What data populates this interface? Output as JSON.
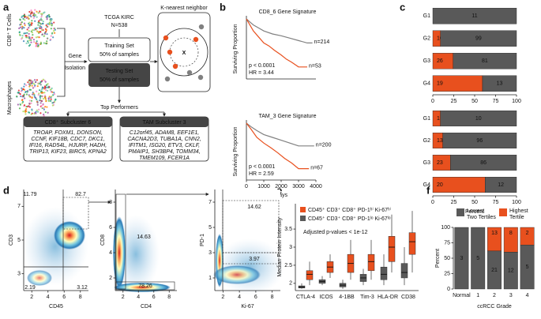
{
  "panel_labels": [
    "a",
    "b",
    "c",
    "d",
    "e",
    "f"
  ],
  "diagram": {
    "cd8_cells": "CD8⁺ T Cells",
    "macrophages": "Macrophages",
    "gene_isolation": [
      "Gene",
      "Isolation"
    ],
    "dataset": "TCGA KIRC",
    "n": "N=538",
    "training": [
      "Training Set",
      "50% of samples"
    ],
    "testing": [
      "Testing Set",
      "50% of samples"
    ],
    "knn": "K-nearest neighbor",
    "knn_x": "X",
    "top": "Top Performers",
    "boxes": [
      {
        "title": "CD8⁺ Subcluster 6",
        "genes": [
          "TROAP, FOXM1, DONSON,",
          "CCNF, KIF18B, CDC7, DKC1,",
          "IFI16, RAD54L, HJURP, HADH,",
          "TRIP13, KIF23, BIRC5, KPNA2"
        ]
      },
      {
        "title": "TAM Subcluster 3",
        "genes": [
          "C12orf45, ADAM8, EEF1E1,",
          "CACNA2D3, TUBA1A, CNN2,",
          "IFITM1, ISG20, ETV3, CKLF,",
          "PMAIP1, SH3BP4, TOMM34,",
          "TMEM109, FCER1A"
        ]
      }
    ]
  },
  "chart_data": [
    {
      "type": "line",
      "title": "CD8_6 Gene Signature",
      "ylabel": "Surviving Proportion",
      "xlim": [
        0,
        4000
      ],
      "ylim": [
        0,
        1
      ],
      "annotations": [
        "p < 0.0001",
        "HR = 3.44"
      ],
      "series": [
        {
          "name": "n=214",
          "color": "#808080",
          "x": [
            0,
            200,
            400,
            700,
            1000,
            1500,
            2000,
            2500,
            3000,
            3500,
            3800
          ],
          "values": [
            1,
            0.95,
            0.9,
            0.85,
            0.8,
            0.75,
            0.72,
            0.68,
            0.64,
            0.6,
            0.6
          ]
        },
        {
          "name": "n=53",
          "color": "#e8501e",
          "x": [
            0,
            200,
            400,
            700,
            1000,
            1300,
            1600,
            2000,
            2300,
            2600,
            3000,
            3500
          ],
          "values": [
            1,
            0.9,
            0.8,
            0.7,
            0.6,
            0.55,
            0.48,
            0.4,
            0.33,
            0.28,
            0.2,
            0.2
          ]
        }
      ]
    },
    {
      "type": "line",
      "title": "TAM_3 Gene Signature",
      "ylabel": "Surviving Proportion",
      "xlabel": "Days",
      "xlim": [
        0,
        4000
      ],
      "xticks": [
        0,
        1000,
        2000,
        3000,
        4000
      ],
      "ylim": [
        0,
        1
      ],
      "annotations": [
        "p < 0.0001",
        "HR = 2.59"
      ],
      "series": [
        {
          "name": "n=200",
          "color": "#808080",
          "x": [
            0,
            300,
            600,
            1000,
            1500,
            2000,
            2500,
            3000,
            3500,
            3900
          ],
          "values": [
            1,
            0.93,
            0.87,
            0.8,
            0.75,
            0.7,
            0.65,
            0.6,
            0.6,
            0.6
          ]
        },
        {
          "name": "n=67",
          "color": "#e8501e",
          "x": [
            0,
            300,
            600,
            1000,
            1400,
            1800,
            2200,
            2600,
            3000,
            3600
          ],
          "values": [
            1,
            0.88,
            0.75,
            0.65,
            0.57,
            0.48,
            0.38,
            0.3,
            0.2,
            0.2
          ]
        }
      ]
    },
    {
      "type": "hbar",
      "stacked_percent": true,
      "categories": [
        "G1",
        "G2",
        "G3",
        "G4"
      ],
      "xlim": [
        0,
        100
      ],
      "xticks": [
        0,
        25,
        50,
        75,
        100
      ],
      "series": [
        {
          "color": "#e8501e",
          "values": [
            0,
            10,
            26,
            19
          ]
        },
        {
          "color": "#595959",
          "values": [
            11,
            99,
            81,
            13
          ]
        }
      ]
    },
    {
      "type": "hbar",
      "stacked_percent": true,
      "categories": [
        "G1",
        "G2",
        "G3",
        "G4"
      ],
      "xlabel": "Percent",
      "xlim": [
        0,
        100
      ],
      "xticks": [
        0,
        25,
        50,
        75,
        100
      ],
      "series": [
        {
          "color": "#e8501e",
          "values": [
            1,
            13,
            23,
            20
          ]
        },
        {
          "color": "#595959",
          "values": [
            10,
            96,
            86,
            12
          ]
        }
      ]
    },
    {
      "type": "density",
      "xlabel": "CD45",
      "ylabel": "CD3",
      "xlim": [
        1,
        9
      ],
      "ylim": [
        2,
        8
      ],
      "xticks": [
        2,
        4,
        6,
        8
      ],
      "yticks": [
        3,
        5,
        7
      ],
      "annotations": [
        11.79,
        82.7,
        2.19,
        3.12
      ]
    },
    {
      "type": "density",
      "xlabel": "CD4",
      "ylabel": "CD8",
      "xlim": [
        1,
        9
      ],
      "ylim": [
        1,
        9
      ],
      "xticks": [
        2,
        4,
        6,
        8
      ],
      "yticks": [
        2,
        4,
        6,
        8
      ],
      "annotations": [
        14.63,
        78.26
      ]
    },
    {
      "type": "density",
      "xlabel": "Ki-67",
      "ylabel": "PD-1",
      "xlim": [
        1,
        9
      ],
      "ylim": [
        0,
        8
      ],
      "xticks": [
        2,
        4,
        6,
        8
      ],
      "yticks": [
        1,
        3,
        5,
        7
      ],
      "annotations": [
        14.62,
        3.97
      ]
    },
    {
      "type": "box",
      "ylabel": "Median Protein Intensity",
      "annotations": [
        "Adjusted p-values < 1e-12"
      ],
      "categories": [
        "CTLA-4",
        "ICOS",
        "4-1BB",
        "Tim-3",
        "HLA-DR",
        "CD38"
      ],
      "ylim": [
        1.8,
        4.2
      ],
      "yticks": [
        2,
        2.5,
        3,
        3.5
      ],
      "series": [
        {
          "name": "CD45⁺ CD3⁺ CD8⁺ PD-1ʰⁱ Ki-67ʰⁱ",
          "color": "#e8501e",
          "values": [
            {
              "min": 1.95,
              "q1": 2.1,
              "median": 2.25,
              "q3": 2.35,
              "max": 2.6
            },
            {
              "min": 2.15,
              "q1": 2.3,
              "median": 2.45,
              "q3": 2.6,
              "max": 2.8
            },
            {
              "min": 2.1,
              "q1": 2.3,
              "median": 2.55,
              "q3": 2.8,
              "max": 3.2
            },
            {
              "min": 2.1,
              "q1": 2.35,
              "median": 2.6,
              "q3": 2.8,
              "max": 3.2
            },
            {
              "min": 2.3,
              "q1": 2.6,
              "median": 3.0,
              "q3": 3.3,
              "max": 3.9
            },
            {
              "min": 2.3,
              "q1": 2.8,
              "median": 3.15,
              "q3": 3.4,
              "max": 4.0
            }
          ]
        },
        {
          "name": "CD45⁺ CD3⁺ CD8⁺ PD-1ˡᵒ Ki-67ˡᵒ",
          "color": "#595959",
          "values": [
            {
              "min": 1.85,
              "q1": 1.87,
              "median": 1.9,
              "q3": 1.93,
              "max": 2.0
            },
            {
              "min": 1.95,
              "q1": 2.0,
              "median": 2.05,
              "q3": 2.1,
              "max": 2.2
            },
            {
              "min": 1.85,
              "q1": 1.9,
              "median": 1.95,
              "q3": 2.0,
              "max": 2.1
            },
            {
              "min": 1.95,
              "q1": 2.05,
              "median": 2.15,
              "q3": 2.25,
              "max": 2.4
            },
            {
              "min": 1.95,
              "q1": 2.1,
              "median": 2.25,
              "q3": 2.45,
              "max": 2.8
            },
            {
              "min": 1.95,
              "q1": 2.15,
              "median": 2.3,
              "q3": 2.55,
              "max": 3.0
            }
          ]
        }
      ]
    },
    {
      "type": "vbar",
      "stacked_percent": true,
      "categories": [
        "Normal",
        "1",
        "2",
        "3",
        "4"
      ],
      "xlabel": "ccRCC Grade",
      "ylabel": "Percent",
      "ylim": [
        0,
        100
      ],
      "yticks": [
        0,
        25,
        50,
        75,
        100
      ],
      "series": [
        {
          "name": "Lowest Two Tertiles",
          "color": "#595959",
          "values": [
            3,
            5,
            21,
            12,
            5
          ]
        },
        {
          "name": "Highest Tertile",
          "color": "#e8501e",
          "values": [
            0,
            0,
            13,
            8,
            2
          ]
        }
      ]
    }
  ]
}
